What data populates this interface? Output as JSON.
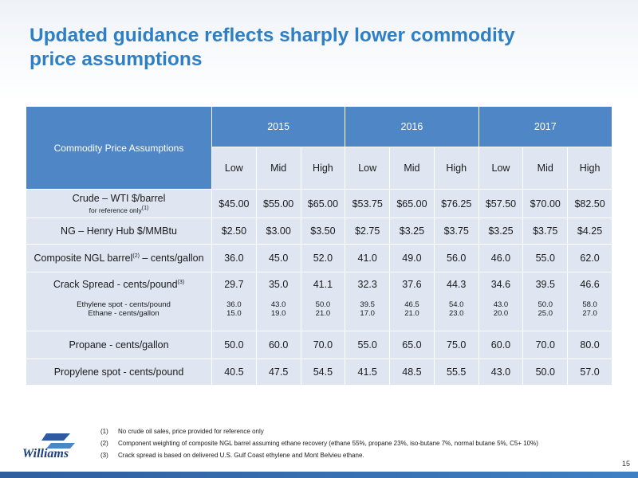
{
  "title": "Updated guidance reflects sharply lower commodity\nprice assumptions",
  "table": {
    "corner_label": "Commodity Price Assumptions",
    "years": [
      "2015",
      "2016",
      "2017"
    ],
    "levels": [
      "Low",
      "Mid",
      "High",
      "Low",
      "Mid",
      "High",
      "Low",
      "Mid",
      "High"
    ],
    "rows": [
      {
        "label": "Crude – WTI $/barrel",
        "sublabel": "for reference only",
        "sublabel_sup": "(1)",
        "values": [
          "$45.00",
          "$55.00",
          "$65.00",
          "$53.75",
          "$65.00",
          "$76.25",
          "$57.50",
          "$70.00",
          "$82.50"
        ]
      },
      {
        "label": "NG – Henry Hub $/MMBtu",
        "values": [
          "$2.50",
          "$3.00",
          "$3.50",
          "$2.75",
          "$3.25",
          "$3.75",
          "$3.25",
          "$3.75",
          "$4.25"
        ]
      },
      {
        "label_a": "Composite NGL barrel",
        "label_sup": "(2)",
        "label_b": " – cents/gallon",
        "values": [
          "36.0",
          "45.0",
          "52.0",
          "41.0",
          "49.0",
          "56.0",
          "46.0",
          "55.0",
          "62.0"
        ]
      },
      {
        "label_a": "Crack Spread - cents/pound",
        "label_sup": "(3)",
        "values": [
          "29.7",
          "35.0",
          "41.1",
          "32.3",
          "37.6",
          "44.3",
          "34.6",
          "39.5",
          "46.6"
        ],
        "sub_labels": [
          "Ethylene spot - cents/pound",
          "Ethane - cents/gallon"
        ],
        "sub_values": [
          [
            "36.0",
            "15.0"
          ],
          [
            "43.0",
            "19.0"
          ],
          [
            "50.0",
            "21.0"
          ],
          [
            "39.5",
            "17.0"
          ],
          [
            "46.5",
            "21.0"
          ],
          [
            "54.0",
            "23.0"
          ],
          [
            "43.0",
            "20.0"
          ],
          [
            "50.0",
            "25.0"
          ],
          [
            "58.0",
            "27.0"
          ]
        ]
      },
      {
        "label": "Propane - cents/gallon",
        "values": [
          "50.0",
          "60.0",
          "70.0",
          "55.0",
          "65.0",
          "75.0",
          "60.0",
          "70.0",
          "80.0"
        ]
      },
      {
        "label": "Propylene spot - cents/pound",
        "values": [
          "40.5",
          "47.5",
          "54.5",
          "41.5",
          "48.5",
          "55.5",
          "43.0",
          "50.0",
          "57.0"
        ]
      }
    ]
  },
  "footnotes": [
    {
      "num": "(1)",
      "text": "No crude oil sales, price provided for reference only"
    },
    {
      "num": "(2)",
      "text": "Component weighting of composite NGL barrel assuming ethane recovery (ethane 55%, propane 23%, iso-butane 7%, normal butane 5%, C5+ 10%)"
    },
    {
      "num": "(3)",
      "text": "Crack spread is based on delivered U.S. Gulf Coast ethylene and Mont Belvieu ethane."
    }
  ],
  "logo_text": "Williams",
  "page_number": "15",
  "colors": {
    "title": "#2e7fc6",
    "header": "#4f86c6",
    "cell": "#dfe6f1"
  }
}
